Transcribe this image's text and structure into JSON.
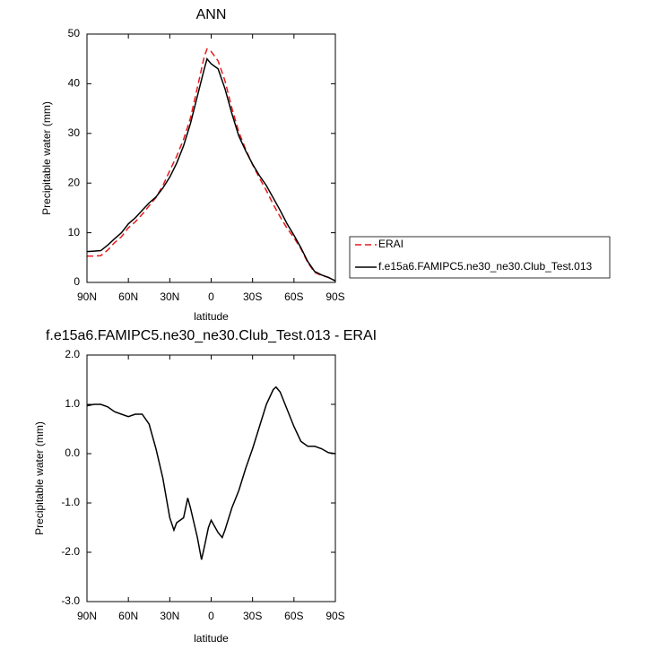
{
  "chart_data": [
    {
      "type": "line",
      "title": "ANN",
      "xlabel": "latitude",
      "ylabel": "Precipitable water (mm)",
      "x": [
        90,
        85,
        80,
        75,
        70,
        65,
        60,
        55,
        50,
        45,
        40,
        35,
        30,
        25,
        20,
        15,
        10,
        5,
        3,
        0,
        -5,
        -10,
        -15,
        -20,
        -25,
        -30,
        -35,
        -40,
        -45,
        -50,
        -55,
        -60,
        -65,
        -70,
        -75,
        -80,
        -85,
        -90
      ],
      "series": [
        {
          "name": "ERAI",
          "color": "#e8191c",
          "style": "dashed",
          "values": [
            5.3,
            5.3,
            5.4,
            6.5,
            8,
            9.2,
            11,
            12.2,
            13.7,
            15.4,
            17.1,
            19.5,
            22.5,
            25.4,
            28.8,
            33.1,
            39.2,
            45.5,
            47,
            46.5,
            44.6,
            40.6,
            35.1,
            30.3,
            26.8,
            23.7,
            21,
            18.5,
            15.7,
            13.2,
            10.9,
            9,
            6.8,
            4,
            2,
            1.4,
            1,
            0.3
          ]
        },
        {
          "name": "f.e15a6.FAMIPC5.ne30_ne30.Club_Test.013",
          "color": "#000000",
          "style": "solid",
          "values": [
            6.2,
            6.3,
            6.4,
            7.5,
            8.8,
            10,
            11.8,
            13,
            14.5,
            16,
            17.2,
            19,
            21.2,
            24,
            27.5,
            32,
            37.5,
            43,
            45,
            44,
            43,
            39,
            34,
            29.5,
            26.5,
            23.8,
            21.5,
            19.5,
            17,
            14.5,
            11.8,
            9.5,
            7,
            4.2,
            2.2,
            1.5,
            1,
            0.3
          ]
        }
      ],
      "xlim": [
        90,
        -90
      ],
      "xticks": [
        {
          "value": 90,
          "label": "90N"
        },
        {
          "value": 60,
          "label": "60N"
        },
        {
          "value": 30,
          "label": "30N"
        },
        0,
        {
          "value": -30,
          "label": "30S"
        },
        {
          "value": -60,
          "label": "60S"
        },
        {
          "value": -90,
          "label": "90S"
        }
      ],
      "ylim": [
        0,
        50
      ],
      "yticks": [
        0,
        10,
        20,
        30,
        40,
        50
      ],
      "legend": "right"
    },
    {
      "type": "line",
      "title": "f.e15a6.FAMIPC5.ne30_ne30.Club_Test.013 - ERAI",
      "xlabel": "latitude",
      "ylabel": "Precipitable water (mm)",
      "x": [
        90,
        85,
        80,
        75,
        70,
        65,
        60,
        55,
        50,
        45,
        40,
        35,
        30,
        27,
        25,
        20,
        17,
        15,
        10,
        7,
        5,
        2,
        0,
        -3,
        -5,
        -8,
        -10,
        -15,
        -20,
        -25,
        -30,
        -35,
        -40,
        -45,
        -47,
        -50,
        -55,
        -60,
        -65,
        -70,
        -75,
        -80,
        -85,
        -90
      ],
      "values": [
        0.97,
        1,
        1,
        0.95,
        0.85,
        0.8,
        0.75,
        0.8,
        0.8,
        0.6,
        0.1,
        -0.5,
        -1.3,
        -1.55,
        -1.4,
        -1.3,
        -0.9,
        -1.1,
        -1.7,
        -2.15,
        -1.9,
        -1.5,
        -1.35,
        -1.5,
        -1.6,
        -1.7,
        -1.55,
        -1.1,
        -0.75,
        -0.3,
        0.1,
        0.55,
        1,
        1.3,
        1.35,
        1.25,
        0.9,
        0.55,
        0.25,
        0.15,
        0.15,
        0.1,
        0.02,
        0
      ],
      "color": "#000000",
      "style": "solid",
      "xlim": [
        90,
        -90
      ],
      "xticks": [
        {
          "value": 90,
          "label": "90N"
        },
        {
          "value": 60,
          "label": "60N"
        },
        {
          "value": 30,
          "label": "30N"
        },
        0,
        {
          "value": -30,
          "label": "30S"
        },
        {
          "value": -60,
          "label": "60S"
        },
        {
          "value": -90,
          "label": "90S"
        }
      ],
      "ylim": [
        -3,
        2
      ],
      "yticks": [
        {
          "value": -3,
          "label": "-3.0"
        },
        {
          "value": -2,
          "label": "-2.0"
        },
        {
          "value": -1,
          "label": "-1.0"
        },
        {
          "value": 0,
          "label": "0.0"
        },
        {
          "value": 1,
          "label": "1.0"
        },
        {
          "value": 2,
          "label": "2.0"
        }
      ]
    }
  ]
}
